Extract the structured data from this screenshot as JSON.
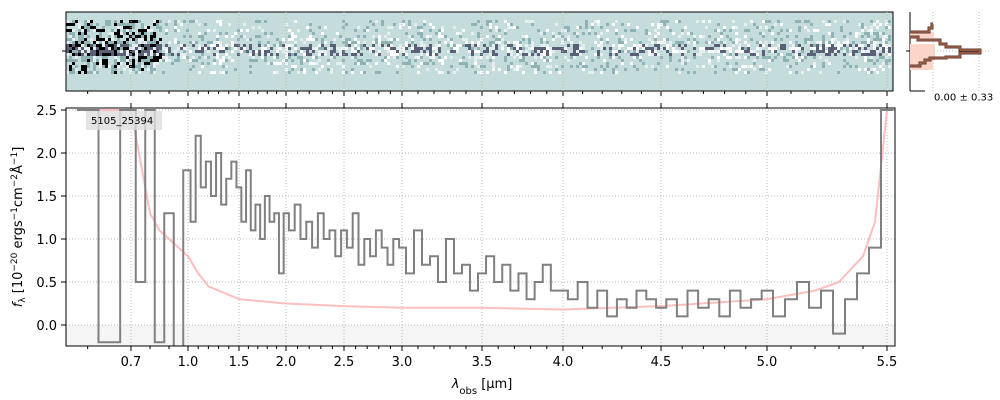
{
  "chart_data": {
    "type": "line",
    "object_label": "5105_25394",
    "xlabel": "λobs [μm]",
    "xlabel_main": "λ",
    "xlabel_sub": "obs",
    "xlabel_unit": " [μm]",
    "ylabel": "fλ [10^-20 ergs^-1 cm^-2 Å^-1]",
    "xlim": [
      0.55,
      5.53
    ],
    "ylim": [
      -0.25,
      2.5
    ],
    "xticks": [
      "0.7",
      "1.0",
      "1.5",
      "2.0",
      "2.5",
      "3.0",
      "3.5",
      "4.0",
      "4.5",
      "5.0",
      "5.5"
    ],
    "yticks": [
      "0.0",
      "0.5",
      "1.0",
      "1.5",
      "2.0",
      "2.5"
    ],
    "grid": true,
    "series": [
      {
        "name": "flux",
        "color": "#808080",
        "x_start": 0.6,
        "x_step": 0.05,
        "values": [
          2.5,
          -0.2,
          2.5,
          0.5,
          2.5,
          -0.2,
          1.3,
          -0.25,
          1.8,
          1.2,
          2.2,
          1.6,
          1.9,
          1.5,
          2.0,
          1.4,
          1.7,
          1.9,
          1.6,
          1.2,
          1.8,
          1.1,
          1.4,
          1.0,
          1.5,
          1.2,
          1.3,
          0.6,
          1.3,
          1.1,
          1.4,
          1.0,
          1.2,
          0.9,
          1.3,
          1.0,
          1.1,
          0.8,
          1.1,
          0.9,
          1.3,
          0.7,
          1.0,
          0.8,
          1.1,
          0.9,
          0.7,
          1.0,
          0.9,
          0.6,
          1.1,
          0.7,
          0.8,
          0.5,
          1.0,
          0.6,
          0.7,
          0.4,
          0.6,
          0.8,
          0.5,
          0.7,
          0.4,
          0.6,
          0.3,
          0.5,
          0.7,
          0.4,
          0.4,
          0.3,
          0.5,
          0.2,
          0.4,
          0.1,
          0.3,
          0.2,
          0.4,
          0.3,
          0.2,
          0.3,
          0.1,
          0.4,
          0.2,
          0.3,
          0.1,
          0.4,
          0.2,
          0.3,
          0.4,
          0.1,
          0.3,
          0.5,
          0.2,
          0.4,
          -0.1,
          0.3,
          0.6,
          0.9,
          2.5
        ]
      },
      {
        "name": "uncertainty",
        "color": "#ffb3b3",
        "x": [
          0.6,
          0.7,
          0.75,
          0.8,
          0.85,
          0.9,
          1.0,
          1.1,
          1.2,
          1.5,
          2.0,
          2.5,
          3.0,
          3.5,
          4.0,
          4.5,
          5.0,
          5.2,
          5.3,
          5.4,
          5.45,
          5.5
        ],
        "values": [
          2.5,
          2.5,
          1.9,
          1.3,
          1.1,
          1.0,
          0.8,
          0.6,
          0.45,
          0.3,
          0.25,
          0.22,
          0.2,
          0.2,
          0.18,
          0.22,
          0.3,
          0.4,
          0.5,
          0.8,
          1.2,
          2.5
        ]
      }
    ],
    "profile_panel": {
      "label": "0.00 ± 0.33"
    }
  }
}
